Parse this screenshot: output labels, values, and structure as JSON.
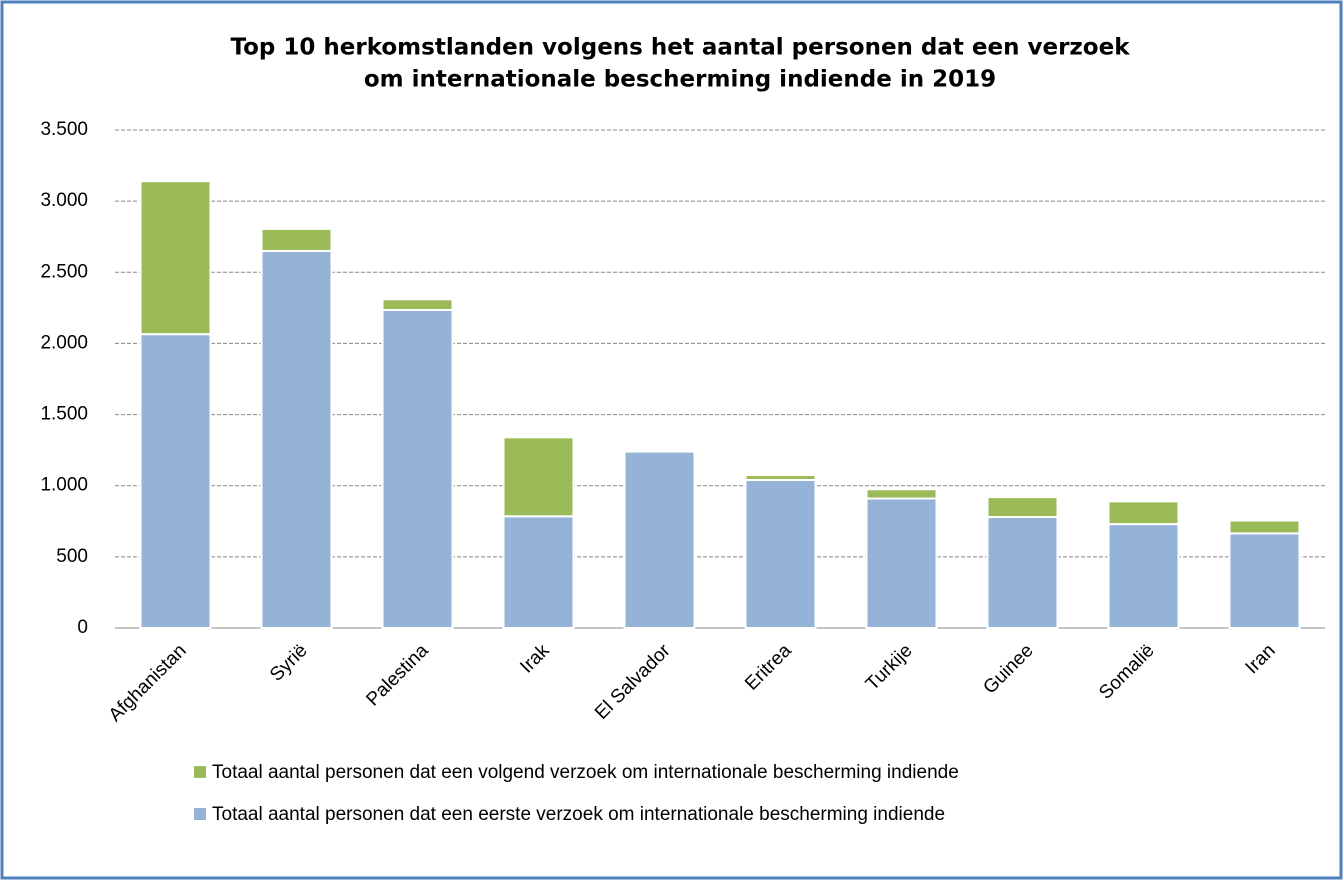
{
  "chart_data": {
    "type": "stacked_bar",
    "title": [
      "Top 10 herkomstlanden volgens het aantal personen dat een verzoek",
      "om internationale bescherming indiende in 2019"
    ],
    "categories": [
      "Afghanistan",
      "Syrië",
      "Palestina",
      "Irak",
      "El Salvador",
      "Eritrea",
      "Turkije",
      "Guinee",
      "Somalië",
      "Iran"
    ],
    "series": [
      {
        "name": "Totaal aantal personen dat een eerste verzoek om internationale bescherming indiende",
        "color": "#95b3d7",
        "values": [
          2065,
          2650,
          2235,
          785,
          1240,
          1040,
          910,
          780,
          730,
          665
        ]
      },
      {
        "name": "Totaal aantal personen dat een volgend verzoek om internationale bescherming indiende",
        "color": "#9bbb59",
        "values": [
          1075,
          155,
          75,
          555,
          0,
          35,
          65,
          140,
          160,
          90
        ]
      }
    ],
    "ylim": [
      0,
      3500
    ],
    "yticks": [
      0,
      500,
      {
        "value": 1000,
        "label": "1.000"
      },
      {
        "value": 1500,
        "label": "1.500"
      },
      {
        "value": 2000,
        "label": "2.000"
      },
      {
        "value": 2500,
        "label": "2.500"
      },
      {
        "value": 3000,
        "label": "3.000"
      },
      {
        "value": 3500,
        "label": "3.500"
      }
    ],
    "grid": true
  }
}
